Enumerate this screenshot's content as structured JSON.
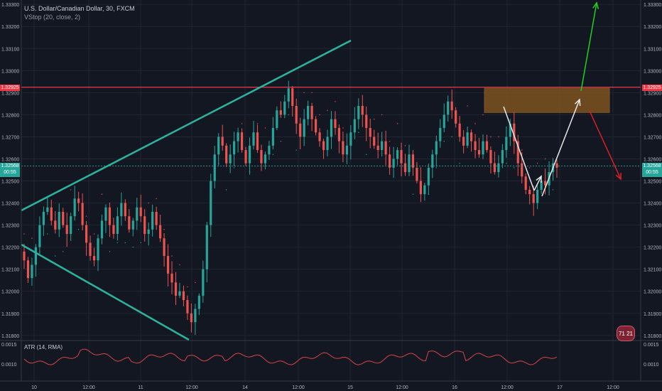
{
  "header": {
    "symbol_line": "U.S. Dollar/Canadian Dollar, 30, FXCM",
    "indicator_line": "VStop (20, close, 2)"
  },
  "atr": {
    "label": "ATR (14, RMA)",
    "ticks": [
      "0.0015",
      "0.0010"
    ]
  },
  "price_axis": {
    "ticks": [
      "1.33300",
      "1.33200",
      "1.33100",
      "1.33000",
      "1.32900",
      "1.32800",
      "1.32700",
      "1.32600",
      "1.32500",
      "1.32400",
      "1.32300",
      "1.32200",
      "1.32100",
      "1.32000",
      "1.31900",
      "1.31800"
    ],
    "tick_values": [
      1.333,
      1.332,
      1.331,
      1.33,
      1.329,
      1.328,
      1.327,
      1.326,
      1.325,
      1.324,
      1.323,
      1.322,
      1.321,
      1.32,
      1.319,
      1.318
    ],
    "range": [
      1.3178,
      1.3332
    ]
  },
  "price_tags": {
    "resistance_value": 1.32925,
    "resistance_label": "1.32925",
    "current_value": 1.32568,
    "current_label": "1.32568",
    "countdown_label": "00:55"
  },
  "time_axis": {
    "ticks": [
      "10",
      "12:00",
      "11",
      "12:00",
      "14",
      "12:00",
      "15",
      "12:00",
      "16",
      "12:00",
      "17",
      "12:00"
    ]
  },
  "badge": {
    "label": "71 21"
  },
  "colors": {
    "background": "#131722",
    "up": "#26a69a",
    "down": "#ef5350",
    "channel": "#2bb5a0",
    "resistance": "#f23645",
    "zone": "#8a5a1e",
    "arrow_up": "#1fd11f",
    "arrow_down": "#e01f26",
    "arrow_white": "#e8e8e8"
  },
  "chart_data": {
    "type": "candlestick",
    "x": [
      "10",
      "12:00",
      "11",
      "12:00",
      "14",
      "12:00",
      "15",
      "12:00",
      "16",
      "12:00",
      "17",
      "12:00"
    ],
    "ylim": [
      1.3178,
      1.3332
    ],
    "close_path": [
      1.3214,
      1.3206,
      1.3212,
      1.322,
      1.323,
      1.3236,
      1.3238,
      1.3232,
      1.3228,
      1.3236,
      1.323,
      1.3226,
      1.3234,
      1.3242,
      1.324,
      1.323,
      1.3222,
      1.3216,
      1.3214,
      1.3224,
      1.3232,
      1.3238,
      1.323,
      1.3226,
      1.3234,
      1.324,
      1.3234,
      1.3228,
      1.3232,
      1.3238,
      1.3234,
      1.3226,
      1.3228,
      1.3236,
      1.323,
      1.3224,
      1.3216,
      1.3208,
      1.3204,
      1.3198,
      1.32,
      1.3196,
      1.319,
      1.3186,
      1.3192,
      1.3198,
      1.321,
      1.323,
      1.325,
      1.3262,
      1.327,
      1.3266,
      1.3258,
      1.3262,
      1.3268,
      1.3272,
      1.3264,
      1.3258,
      1.3266,
      1.3272,
      1.3264,
      1.3258,
      1.3262,
      1.3266,
      1.3274,
      1.3282,
      1.328,
      1.3286,
      1.3292,
      1.3284,
      1.3276,
      1.327,
      1.3278,
      1.3284,
      1.3278,
      1.3272,
      1.3268,
      1.3264,
      1.327,
      1.3278,
      1.3274,
      1.3268,
      1.3262,
      1.3266,
      1.3272,
      1.3278,
      1.3284,
      1.328,
      1.3274,
      1.327,
      1.3266,
      1.3264,
      1.3268,
      1.3262,
      1.3256,
      1.326,
      1.3264,
      1.3258,
      1.3254,
      1.3262,
      1.3256,
      1.325,
      1.3244,
      1.3248,
      1.3256,
      1.3262,
      1.3268,
      1.3274,
      1.328,
      1.3286,
      1.3282,
      1.3276,
      1.327,
      1.3266,
      1.3272,
      1.3268,
      1.3264,
      1.3262,
      1.3268,
      1.3264,
      1.3258,
      1.3254,
      1.3258,
      1.3264,
      1.327,
      1.3276,
      1.3268,
      1.3258,
      1.3252,
      1.3246,
      1.3244,
      1.324,
      1.3246,
      1.325,
      1.3248,
      1.3254,
      1.3258,
      1.3256
    ],
    "annotations": {
      "resistance_level": 1.32925,
      "supply_zone": [
        1.3281,
        1.3292
      ]
    }
  }
}
